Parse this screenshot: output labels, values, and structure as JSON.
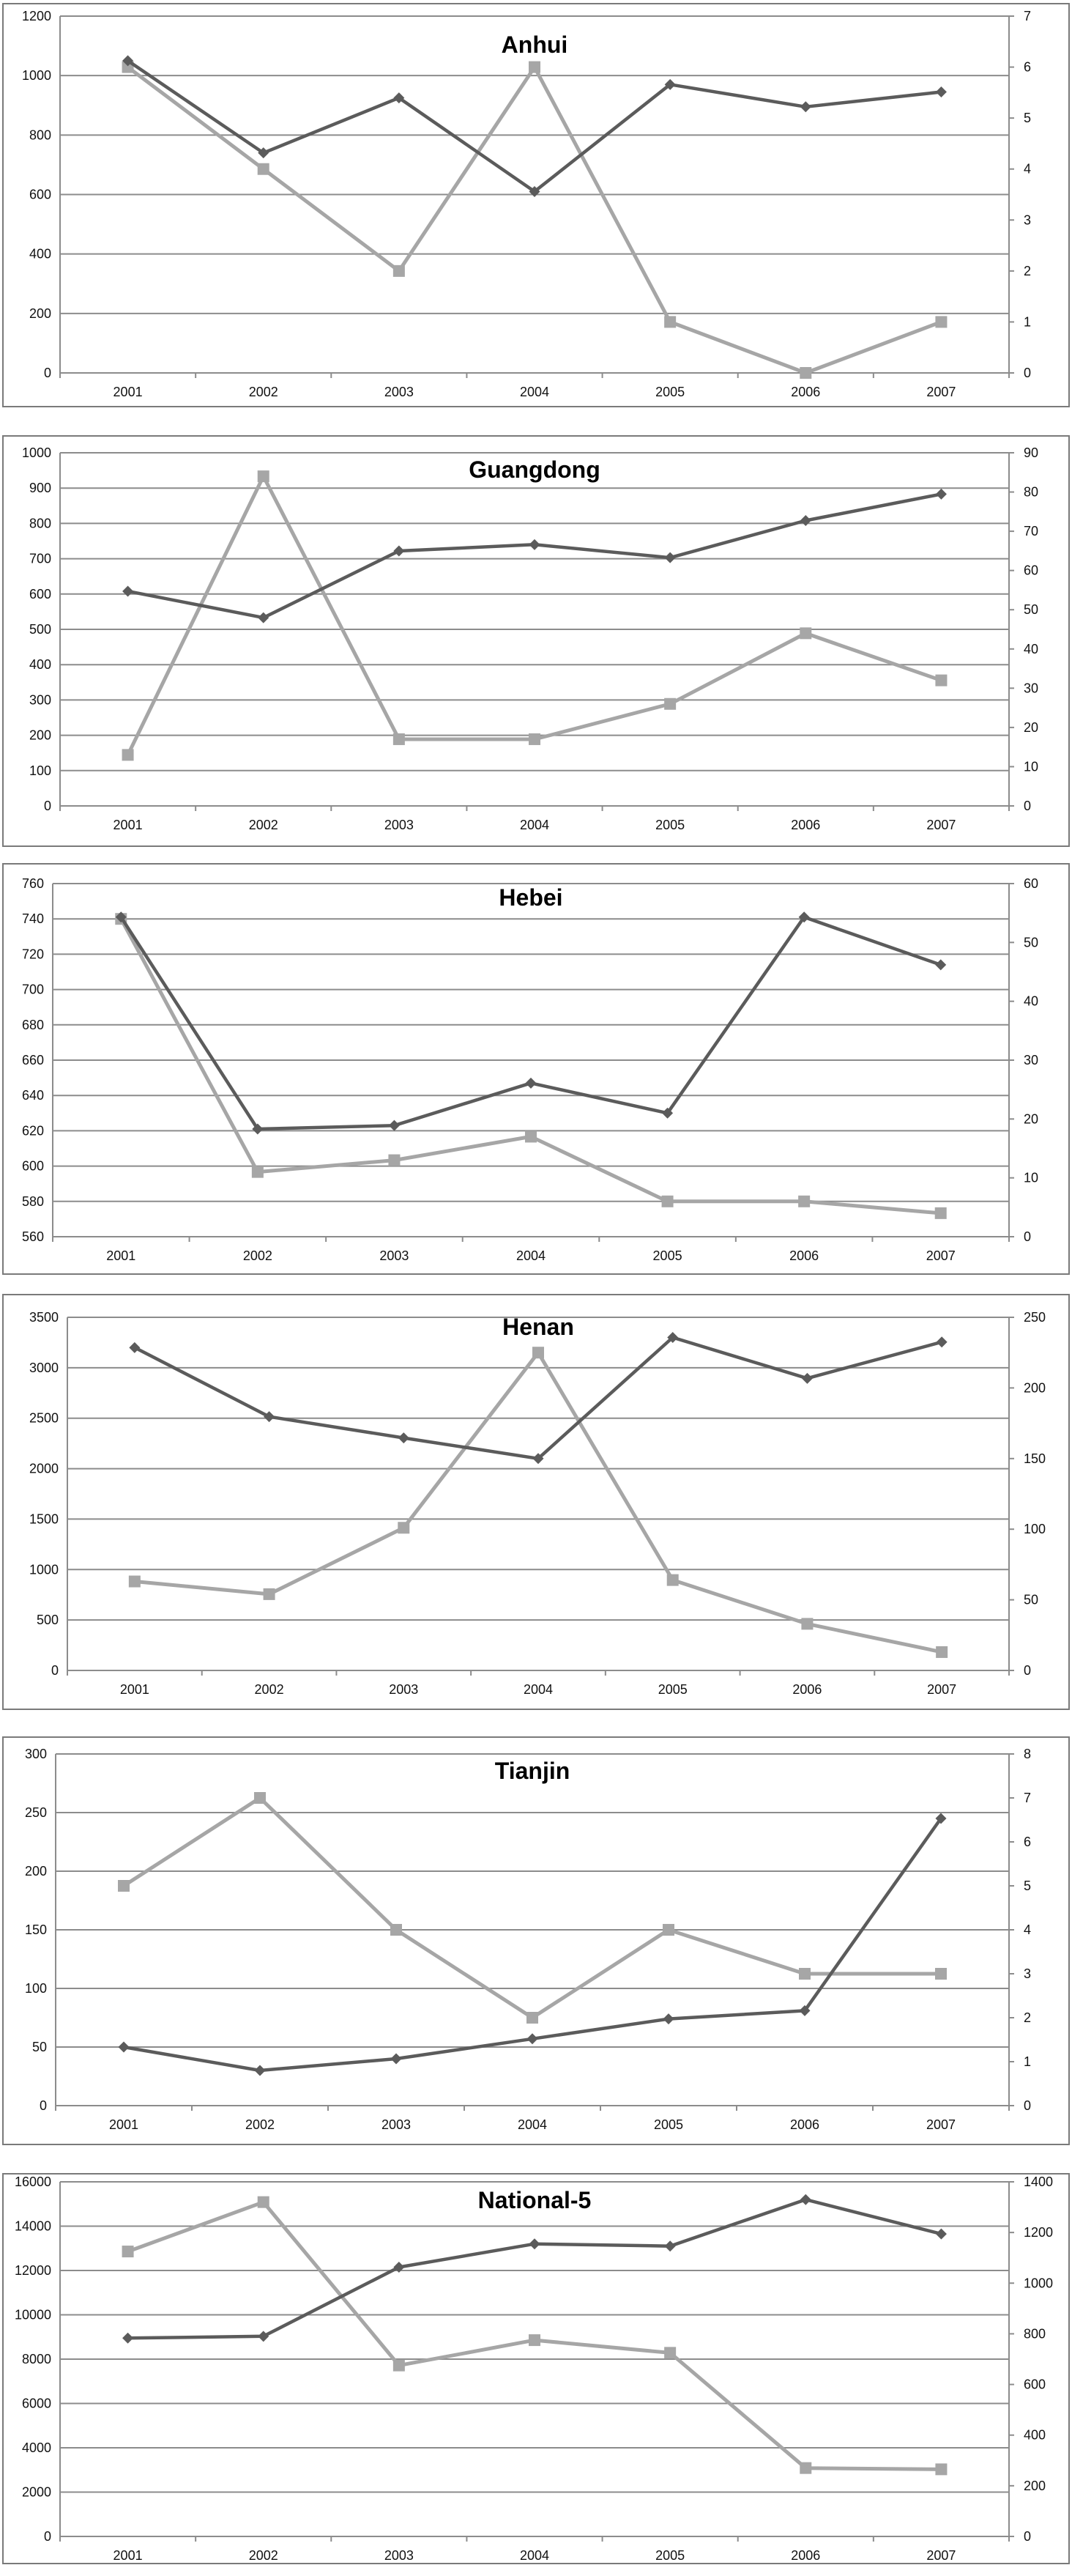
{
  "colors": {
    "dark_series": "#5b5b5b",
    "light_series": "#a6a6a6",
    "grid": "#8c8c8c"
  },
  "chart_data": [
    {
      "type": "line",
      "title": "Anhui",
      "categories": [
        "2001",
        "2002",
        "2003",
        "2004",
        "2005",
        "2006",
        "2007"
      ],
      "ylim": [
        0,
        1200
      ],
      "yticks": [
        0,
        200,
        400,
        600,
        800,
        1000,
        1200
      ],
      "y2lim": [
        0,
        7
      ],
      "y2ticks": [
        0,
        1,
        2,
        3,
        4,
        5,
        6,
        7
      ],
      "grid": true,
      "legend": "none",
      "series": [
        {
          "axis": "left",
          "marker": "diamond",
          "color": "#5b5b5b",
          "values": [
            1050,
            740,
            925,
            610,
            970,
            895,
            945
          ]
        },
        {
          "axis": "right",
          "marker": "square",
          "color": "#a6a6a6",
          "values": [
            6,
            4,
            2,
            6,
            1,
            0,
            1
          ]
        }
      ]
    },
    {
      "type": "line",
      "title": "Guangdong",
      "categories": [
        "2001",
        "2002",
        "2003",
        "2004",
        "2005",
        "2006",
        "2007"
      ],
      "ylim": [
        0,
        1000
      ],
      "yticks": [
        0,
        100,
        200,
        300,
        400,
        500,
        600,
        700,
        800,
        900,
        1000
      ],
      "y2lim": [
        0,
        90
      ],
      "y2ticks": [
        0,
        10,
        20,
        30,
        40,
        50,
        60,
        70,
        80,
        90
      ],
      "grid": true,
      "legend": "none",
      "series": [
        {
          "axis": "left",
          "marker": "diamond",
          "color": "#5b5b5b",
          "values": [
            608,
            533,
            722,
            740,
            703,
            808,
            883
          ]
        },
        {
          "axis": "right",
          "marker": "square",
          "color": "#a6a6a6",
          "values": [
            13,
            84,
            17,
            17,
            26,
            44,
            32
          ]
        }
      ]
    },
    {
      "type": "line",
      "title": "Hebei",
      "categories": [
        "2001",
        "2002",
        "2003",
        "2004",
        "2005",
        "2006",
        "2007"
      ],
      "ylim": [
        560,
        760
      ],
      "yticks": [
        560,
        580,
        600,
        620,
        640,
        660,
        680,
        700,
        720,
        740,
        760
      ],
      "y2lim": [
        0,
        60
      ],
      "y2ticks": [
        0,
        10,
        20,
        30,
        40,
        50,
        60
      ],
      "grid": true,
      "legend": "none",
      "series": [
        {
          "axis": "left",
          "marker": "diamond",
          "color": "#5b5b5b",
          "values": [
            741,
            621,
            623,
            647,
            630,
            741,
            714
          ]
        },
        {
          "axis": "right",
          "marker": "square",
          "color": "#a6a6a6",
          "values": [
            54,
            11,
            13,
            17,
            6,
            6,
            4
          ]
        }
      ]
    },
    {
      "type": "line",
      "title": "Henan",
      "categories": [
        "2001",
        "2002",
        "2003",
        "2004",
        "2005",
        "2006",
        "2007"
      ],
      "ylim": [
        0,
        3500
      ],
      "yticks": [
        0,
        500,
        1000,
        1500,
        2000,
        2500,
        3000,
        3500
      ],
      "y2lim": [
        0,
        250
      ],
      "y2ticks": [
        0,
        50,
        100,
        150,
        200,
        250
      ],
      "grid": true,
      "legend": "none",
      "series": [
        {
          "axis": "left",
          "marker": "diamond",
          "color": "#5b5b5b",
          "values": [
            3200,
            2515,
            2305,
            2100,
            3300,
            2895,
            3255
          ]
        },
        {
          "axis": "right",
          "marker": "square",
          "color": "#a6a6a6",
          "values": [
            63,
            54,
            101,
            225,
            64,
            33,
            13
          ]
        }
      ]
    },
    {
      "type": "line",
      "title": "Tianjin",
      "categories": [
        "2001",
        "2002",
        "2003",
        "2004",
        "2005",
        "2006",
        "2007"
      ],
      "ylim": [
        0,
        300
      ],
      "yticks": [
        0,
        50,
        100,
        150,
        200,
        250,
        300
      ],
      "y2lim": [
        0,
        8
      ],
      "y2ticks": [
        0,
        1,
        2,
        3,
        4,
        5,
        6,
        7,
        8
      ],
      "grid": true,
      "legend": "none",
      "series": [
        {
          "axis": "left",
          "marker": "diamond",
          "color": "#5b5b5b",
          "values": [
            50,
            30,
            40,
            57,
            74,
            81,
            245
          ]
        },
        {
          "axis": "right",
          "marker": "square",
          "color": "#a6a6a6",
          "values": [
            5,
            7,
            4,
            2,
            4,
            3,
            3
          ]
        }
      ]
    },
    {
      "type": "line",
      "title": "National-5",
      "categories": [
        "2001",
        "2002",
        "2003",
        "2004",
        "2005",
        "2006",
        "2007"
      ],
      "ylim": [
        0,
        16000
      ],
      "yticks": [
        0,
        2000,
        4000,
        6000,
        8000,
        10000,
        12000,
        14000,
        16000
      ],
      "y2lim": [
        0,
        1400
      ],
      "y2ticks": [
        0,
        200,
        400,
        600,
        800,
        1000,
        1200,
        1400
      ],
      "grid": true,
      "legend": "none",
      "series": [
        {
          "axis": "left",
          "marker": "diamond",
          "color": "#5b5b5b",
          "values": [
            8950,
            9030,
            12150,
            13200,
            13100,
            15200,
            13650
          ]
        },
        {
          "axis": "right",
          "marker": "square",
          "color": "#a6a6a6",
          "values": [
            1125,
            1320,
            675,
            775,
            725,
            270,
            265
          ]
        }
      ]
    }
  ]
}
